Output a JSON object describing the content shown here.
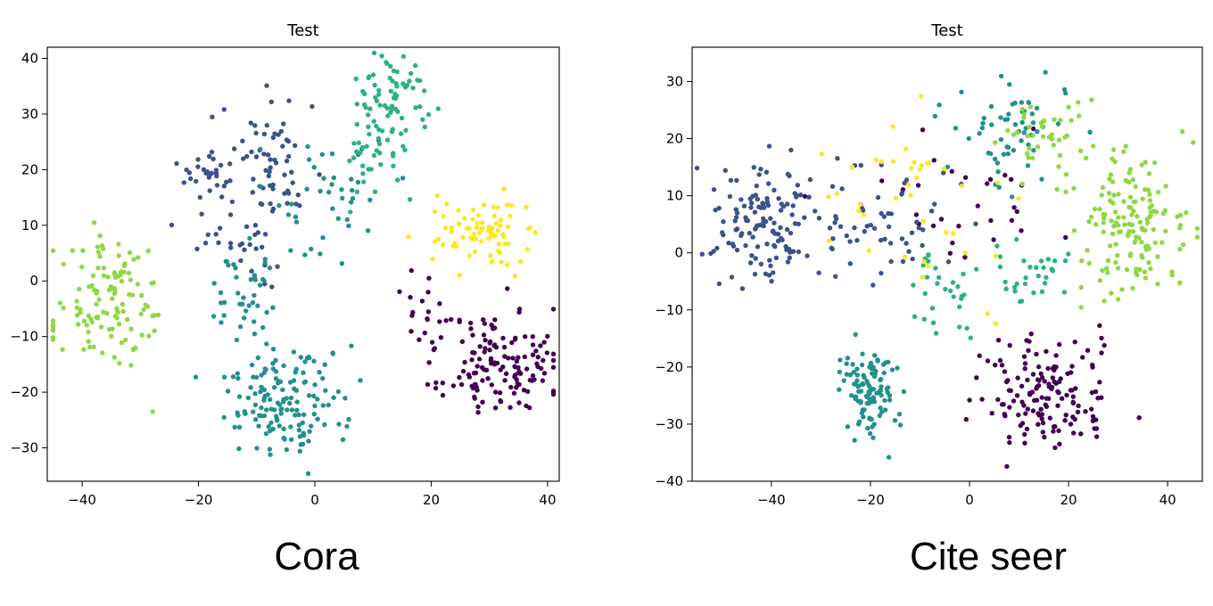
{
  "captions": [
    "Cora",
    "Cite seer"
  ],
  "colors": [
    "#440154",
    "#3b528b",
    "#21918c",
    "#2db27d",
    "#8fd744",
    "#fde725"
  ],
  "chart_data": [
    {
      "type": "scatter",
      "title": "Test",
      "caption": "Cora",
      "xlim": [
        -46,
        42
      ],
      "ylim": [
        -36,
        42
      ],
      "xticks": [
        -40,
        -20,
        0,
        20,
        40
      ],
      "yticks": [
        -30,
        -20,
        -10,
        0,
        10,
        20,
        30,
        40
      ],
      "grid": false,
      "clusters": [
        {
          "color": "#440154",
          "cx": 32,
          "cy": -15,
          "sx": 5,
          "sy": 5,
          "n": 140,
          "seed": 11
        },
        {
          "color": "#440154",
          "cx": 20,
          "cy": -6,
          "sx": 3,
          "sy": 4,
          "n": 20,
          "seed": 12
        },
        {
          "color": "#3b528b",
          "cx": -18,
          "cy": 19,
          "sx": 2.5,
          "sy": 2,
          "n": 30,
          "seed": 13
        },
        {
          "color": "#3b528b",
          "cx": -6,
          "cy": 22,
          "sx": 4,
          "sy": 6,
          "n": 60,
          "seed": 14
        },
        {
          "color": "#3b528b",
          "cx": -12,
          "cy": 8,
          "sx": 4,
          "sy": 4,
          "n": 30,
          "seed": 15
        },
        {
          "color": "#21918c",
          "cx": -5,
          "cy": -22,
          "sx": 5,
          "sy": 5,
          "n": 150,
          "seed": 16
        },
        {
          "color": "#21918c",
          "cx": -12,
          "cy": -3,
          "sx": 3,
          "sy": 4,
          "n": 40,
          "seed": 17
        },
        {
          "color": "#21918c",
          "cx": 2,
          "cy": 15,
          "sx": 5,
          "sy": 6,
          "n": 40,
          "seed": 18
        },
        {
          "color": "#2db27d",
          "cx": 13,
          "cy": 33,
          "sx": 3,
          "sy": 4,
          "n": 70,
          "seed": 19
        },
        {
          "color": "#2db27d",
          "cx": 10,
          "cy": 22,
          "sx": 3,
          "sy": 4,
          "n": 30,
          "seed": 20
        },
        {
          "color": "#8fd744",
          "cx": -35,
          "cy": -5,
          "sx": 5,
          "sy": 6,
          "n": 120,
          "seed": 21
        },
        {
          "color": "#fde725",
          "cx": 28,
          "cy": 9,
          "sx": 4,
          "sy": 3,
          "n": 80,
          "seed": 22
        }
      ]
    },
    {
      "type": "scatter",
      "title": "Test",
      "caption": "Cite seer",
      "xlim": [
        -56,
        47
      ],
      "ylim": [
        -40,
        36
      ],
      "xticks": [
        -40,
        -20,
        0,
        20,
        40
      ],
      "yticks": [
        -40,
        -30,
        -20,
        -10,
        0,
        10,
        20,
        30
      ],
      "grid": false,
      "clusters": [
        {
          "color": "#440154",
          "cx": 15,
          "cy": -25,
          "sx": 7,
          "sy": 5,
          "n": 150,
          "seed": 31
        },
        {
          "color": "#440154",
          "cx": 0,
          "cy": 10,
          "sx": 12,
          "sy": 6,
          "n": 30,
          "seed": 32
        },
        {
          "color": "#3b528b",
          "cx": -42,
          "cy": 5,
          "sx": 5,
          "sy": 5,
          "n": 130,
          "seed": 33
        },
        {
          "color": "#3b528b",
          "cx": -18,
          "cy": 5,
          "sx": 8,
          "sy": 6,
          "n": 60,
          "seed": 34
        },
        {
          "color": "#21918c",
          "cx": -20,
          "cy": -24,
          "sx": 3,
          "sy": 4,
          "n": 110,
          "seed": 35
        },
        {
          "color": "#21918c",
          "cx": 8,
          "cy": 22,
          "sx": 6,
          "sy": 5,
          "n": 60,
          "seed": 36
        },
        {
          "color": "#2db27d",
          "cx": -5,
          "cy": -8,
          "sx": 3,
          "sy": 4,
          "n": 30,
          "seed": 37
        },
        {
          "color": "#2db27d",
          "cx": 12,
          "cy": -3,
          "sx": 4,
          "sy": 3,
          "n": 30,
          "seed": 38
        },
        {
          "color": "#8fd744",
          "cx": 33,
          "cy": 5,
          "sx": 5,
          "sy": 6,
          "n": 150,
          "seed": 39
        },
        {
          "color": "#8fd744",
          "cx": 15,
          "cy": 20,
          "sx": 4,
          "sy": 3,
          "n": 40,
          "seed": 40
        },
        {
          "color": "#fde725",
          "cx": -10,
          "cy": 8,
          "sx": 12,
          "sy": 8,
          "n": 40,
          "seed": 41
        }
      ]
    }
  ]
}
